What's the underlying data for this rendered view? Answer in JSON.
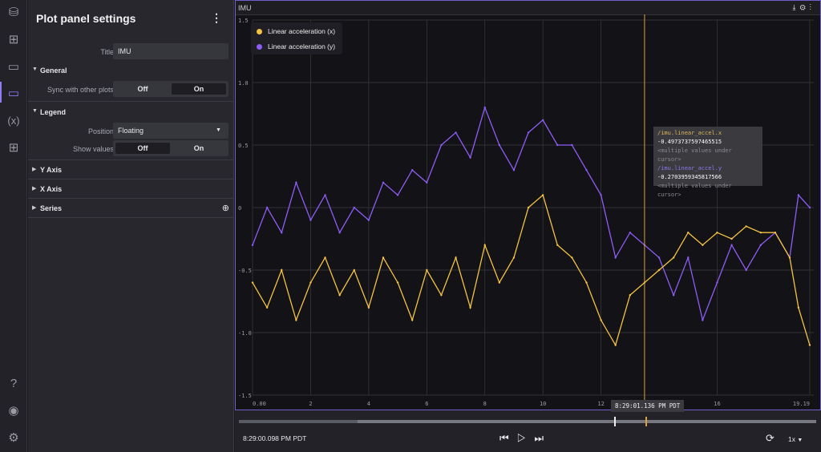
{
  "rail": {
    "icons": [
      "data-source-settings-icon",
      "layout-grid-icon",
      "add-panel-icon",
      "panel-settings-icon",
      "variables-icon",
      "extensions-icon",
      "help-icon",
      "account-icon",
      "app-settings-icon"
    ],
    "variables_glyph": "(x)"
  },
  "settings": {
    "title": "Plot panel settings",
    "title_field": {
      "label": "Title",
      "value": "IMU"
    },
    "general": {
      "label": "General",
      "sync_label": "Sync with other plots",
      "off": "Off",
      "on": "On",
      "selected": "Off"
    },
    "legend": {
      "label": "Legend",
      "position_label": "Position",
      "position_value": "Floating",
      "show_values_label": "Show values",
      "off": "Off",
      "on": "On",
      "selected": "Off"
    },
    "collapsed": [
      "Y Axis",
      "X Axis",
      "Series"
    ]
  },
  "plot": {
    "title": "IMU",
    "legend": [
      {
        "name": "Linear acceleration (x)",
        "color": "#f5c242"
      },
      {
        "name": "Linear acceleration (y)",
        "color": "#8e5cf6"
      }
    ],
    "tooltip": [
      {
        "topic": "/imu.linear_accel.x",
        "value": "-0.4973737597465515",
        "note": "<multiple values under cursor>"
      },
      {
        "topic": "/imu.linear_accel.y",
        "value": "-0.2703959345817566",
        "note": "<multiple values under cursor>"
      }
    ],
    "hover_time": "8:29:01.136 PM PDT"
  },
  "chart_data": {
    "type": "line",
    "xlim": [
      0,
      19.19
    ],
    "ylim": [
      -1.5,
      1.5
    ],
    "x_ticks": [
      "0.00",
      "2",
      "4",
      "6",
      "8",
      "10",
      "12",
      "16",
      "19.19"
    ],
    "x_tick_values": [
      0,
      2,
      4,
      6,
      8,
      10,
      12,
      16,
      19.19
    ],
    "y_ticks": [
      "1.5",
      "1.0",
      "0.5",
      "0",
      "-0.5",
      "-1.0",
      "-1.5"
    ],
    "y_tick_values": [
      1.5,
      1.0,
      0.5,
      0,
      -0.5,
      -1.0,
      -1.5
    ],
    "grid": true,
    "legend_position": "top-left",
    "cursor_x": 13.5,
    "x": [
      0,
      0.5,
      1,
      1.5,
      2,
      2.5,
      3,
      3.5,
      4,
      4.5,
      5,
      5.5,
      6,
      6.5,
      7,
      7.5,
      8,
      8.5,
      9,
      9.5,
      10,
      10.5,
      11,
      11.5,
      12,
      12.5,
      13,
      13.5,
      14,
      14.5,
      15,
      15.5,
      16,
      16.5,
      17,
      17.5,
      18,
      18.5,
      18.8,
      19.19
    ],
    "series": [
      {
        "name": "Linear acceleration (x)",
        "color": "#f5c242",
        "values": [
          -0.6,
          -0.8,
          -0.5,
          -0.9,
          -0.6,
          -0.4,
          -0.7,
          -0.5,
          -0.8,
          -0.4,
          -0.6,
          -0.9,
          -0.5,
          -0.7,
          -0.4,
          -0.8,
          -0.3,
          -0.6,
          -0.4,
          0.0,
          0.1,
          -0.3,
          -0.4,
          -0.6,
          -0.9,
          -1.1,
          -0.7,
          -0.6,
          -0.5,
          -0.4,
          -0.2,
          -0.3,
          -0.2,
          -0.25,
          -0.15,
          -0.2,
          -0.2,
          -0.4,
          -0.8,
          -1.1
        ]
      },
      {
        "name": "Linear acceleration (y)",
        "color": "#8e5cf6",
        "values": [
          -0.3,
          0.0,
          -0.2,
          0.2,
          -0.1,
          0.1,
          -0.2,
          0.0,
          -0.1,
          0.2,
          0.1,
          0.3,
          0.2,
          0.5,
          0.6,
          0.4,
          0.8,
          0.5,
          0.3,
          0.6,
          0.7,
          0.5,
          0.5,
          0.3,
          0.1,
          -0.4,
          -0.2,
          -0.3,
          -0.4,
          -0.7,
          -0.4,
          -0.9,
          -0.6,
          -0.3,
          -0.5,
          -0.3,
          -0.2,
          -0.4,
          0.1,
          0.0
        ]
      }
    ]
  },
  "playback": {
    "current_time": "8:29:00.098 PM PDT",
    "speed": "1x",
    "progress": 0.65
  }
}
